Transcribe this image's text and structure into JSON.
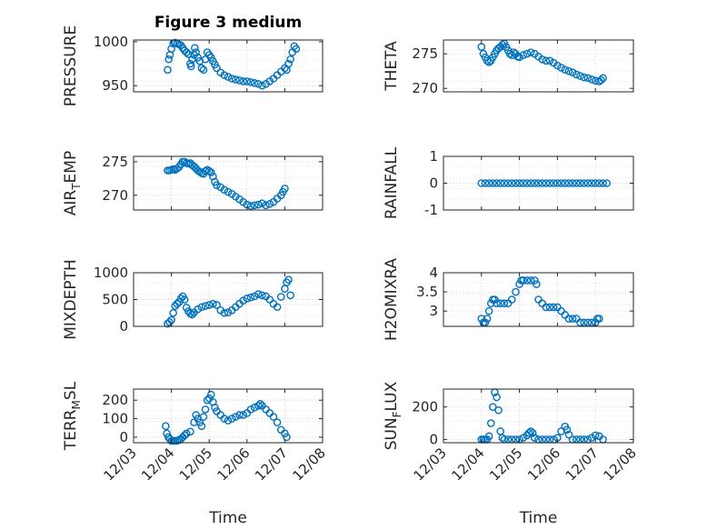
{
  "figure_title": "Figure 3 medium",
  "colors": {
    "marker": "#0072BD",
    "axes": "#262626",
    "grid": "#d0d0d0"
  },
  "chart_data": [
    {
      "type": "scatter",
      "ylabel": "PRESSURE",
      "xlabel": "",
      "ylim": [
        943,
        1002
      ],
      "yticks": [
        950,
        1000
      ],
      "xticks": [],
      "grid": true,
      "points": [
        [
          3.9,
          968
        ],
        [
          3.93,
          980
        ],
        [
          3.96,
          985
        ],
        [
          4.0,
          992
        ],
        [
          4.05,
          998
        ],
        [
          4.1,
          999
        ],
        [
          4.15,
          998
        ],
        [
          4.2,
          997
        ],
        [
          4.25,
          996
        ],
        [
          4.3,
          993
        ],
        [
          4.35,
          990
        ],
        [
          4.4,
          988
        ],
        [
          4.45,
          986
        ],
        [
          4.5,
          975
        ],
        [
          4.52,
          972
        ],
        [
          4.55,
          980
        ],
        [
          4.6,
          985
        ],
        [
          4.62,
          993
        ],
        [
          4.65,
          988
        ],
        [
          4.7,
          982
        ],
        [
          4.75,
          978
        ],
        [
          4.8,
          970
        ],
        [
          4.85,
          968
        ],
        [
          4.9,
          980
        ],
        [
          4.95,
          988
        ],
        [
          5.0,
          985
        ],
        [
          5.05,
          982
        ],
        [
          5.1,
          978
        ],
        [
          5.15,
          974
        ],
        [
          5.2,
          970
        ],
        [
          5.3,
          965
        ],
        [
          5.4,
          962
        ],
        [
          5.5,
          960
        ],
        [
          5.6,
          958
        ],
        [
          5.7,
          957
        ],
        [
          5.8,
          956
        ],
        [
          5.9,
          955
        ],
        [
          6.0,
          955
        ],
        [
          6.1,
          954
        ],
        [
          6.2,
          953
        ],
        [
          6.3,
          952
        ],
        [
          6.4,
          950
        ],
        [
          6.5,
          952
        ],
        [
          6.6,
          955
        ],
        [
          6.7,
          958
        ],
        [
          6.8,
          962
        ],
        [
          6.9,
          966
        ],
        [
          7.0,
          970
        ],
        [
          7.05,
          968
        ],
        [
          7.1,
          975
        ],
        [
          7.15,
          980
        ],
        [
          7.2,
          988
        ],
        [
          7.25,
          995
        ],
        [
          7.3,
          992
        ]
      ]
    },
    {
      "type": "scatter",
      "ylabel": "THETA",
      "xlabel": "",
      "ylim": [
        269.5,
        277
      ],
      "yticks": [
        270,
        275
      ],
      "xticks": [],
      "grid": true,
      "points": [
        [
          4.0,
          276
        ],
        [
          4.05,
          275
        ],
        [
          4.1,
          274.5
        ],
        [
          4.15,
          274
        ],
        [
          4.2,
          273.8
        ],
        [
          4.25,
          274
        ],
        [
          4.3,
          274.5
        ],
        [
          4.35,
          275
        ],
        [
          4.4,
          275.5
        ],
        [
          4.45,
          275.8
        ],
        [
          4.5,
          276
        ],
        [
          4.55,
          276.3
        ],
        [
          4.6,
          276.5
        ],
        [
          4.65,
          276
        ],
        [
          4.7,
          275.5
        ],
        [
          4.75,
          275
        ],
        [
          4.8,
          274.8
        ],
        [
          4.85,
          275.2
        ],
        [
          4.9,
          275
        ],
        [
          4.95,
          274.6
        ],
        [
          5.0,
          274.5
        ],
        [
          5.1,
          274.8
        ],
        [
          5.2,
          275
        ],
        [
          5.3,
          275.2
        ],
        [
          5.4,
          275
        ],
        [
          5.5,
          274.6
        ],
        [
          5.6,
          274.2
        ],
        [
          5.7,
          274
        ],
        [
          5.8,
          274
        ],
        [
          5.9,
          273.7
        ],
        [
          6.0,
          273.3
        ],
        [
          6.1,
          273
        ],
        [
          6.2,
          272.7
        ],
        [
          6.3,
          272.5
        ],
        [
          6.4,
          272.3
        ],
        [
          6.5,
          272
        ],
        [
          6.6,
          271.8
        ],
        [
          6.7,
          271.6
        ],
        [
          6.8,
          271.5
        ],
        [
          6.9,
          271.3
        ],
        [
          7.0,
          271.1
        ],
        [
          7.1,
          271
        ],
        [
          7.15,
          271.2
        ],
        [
          7.2,
          271.5
        ]
      ]
    },
    {
      "type": "scatter",
      "ylabel": "AIR_TEMP",
      "xlabel": "",
      "ylim": [
        267.8,
        275.8
      ],
      "yticks": [
        270,
        275
      ],
      "xticks": [],
      "grid": true,
      "points": [
        [
          3.9,
          273.7
        ],
        [
          3.95,
          273.7
        ],
        [
          4.0,
          273.8
        ],
        [
          4.05,
          273.9
        ],
        [
          4.1,
          273.8
        ],
        [
          4.15,
          274
        ],
        [
          4.2,
          274.2
        ],
        [
          4.25,
          274.6
        ],
        [
          4.3,
          275
        ],
        [
          4.35,
          275
        ],
        [
          4.4,
          274.8
        ],
        [
          4.45,
          274.7
        ],
        [
          4.5,
          274.8
        ],
        [
          4.55,
          274.5
        ],
        [
          4.6,
          274.3
        ],
        [
          4.65,
          274
        ],
        [
          4.7,
          273.7
        ],
        [
          4.75,
          273.5
        ],
        [
          4.8,
          273.3
        ],
        [
          4.85,
          273.2
        ],
        [
          4.9,
          273.6
        ],
        [
          4.95,
          273.8
        ],
        [
          5.0,
          273.6
        ],
        [
          5.05,
          273.4
        ],
        [
          5.1,
          272.8
        ],
        [
          5.15,
          272
        ],
        [
          5.2,
          271.5
        ],
        [
          5.3,
          271.2
        ],
        [
          5.4,
          270.8
        ],
        [
          5.5,
          270.5
        ],
        [
          5.6,
          270.2
        ],
        [
          5.7,
          269.8
        ],
        [
          5.8,
          269.4
        ],
        [
          5.9,
          269
        ],
        [
          6.0,
          268.6
        ],
        [
          6.1,
          268.4
        ],
        [
          6.2,
          268.5
        ],
        [
          6.3,
          268.6
        ],
        [
          6.4,
          268.8
        ],
        [
          6.5,
          268.5
        ],
        [
          6.6,
          268.7
        ],
        [
          6.7,
          269
        ],
        [
          6.8,
          269.5
        ],
        [
          6.9,
          270
        ],
        [
          6.95,
          270.5
        ],
        [
          7.0,
          271
        ]
      ]
    },
    {
      "type": "scatter",
      "ylabel": "RAINFALL",
      "xlabel": "",
      "ylim": [
        -1,
        1
      ],
      "yticks": [
        -1,
        0,
        1
      ],
      "xticks": [],
      "grid": true,
      "points": [
        [
          4.0,
          0
        ],
        [
          4.1,
          0
        ],
        [
          4.2,
          0
        ],
        [
          4.3,
          0
        ],
        [
          4.4,
          0
        ],
        [
          4.5,
          0
        ],
        [
          4.6,
          0
        ],
        [
          4.7,
          0
        ],
        [
          4.8,
          0
        ],
        [
          4.9,
          0
        ],
        [
          5.0,
          0
        ],
        [
          5.1,
          0
        ],
        [
          5.2,
          0
        ],
        [
          5.3,
          0
        ],
        [
          5.4,
          0
        ],
        [
          5.5,
          0
        ],
        [
          5.6,
          0
        ],
        [
          5.7,
          0
        ],
        [
          5.8,
          0
        ],
        [
          5.9,
          0
        ],
        [
          6.0,
          0
        ],
        [
          6.1,
          0
        ],
        [
          6.2,
          0
        ],
        [
          6.3,
          0
        ],
        [
          6.4,
          0
        ],
        [
          6.5,
          0
        ],
        [
          6.6,
          0
        ],
        [
          6.7,
          0
        ],
        [
          6.8,
          0
        ],
        [
          6.9,
          0
        ],
        [
          7.0,
          0
        ],
        [
          7.1,
          0
        ],
        [
          7.2,
          0
        ],
        [
          7.3,
          0
        ]
      ]
    },
    {
      "type": "scatter",
      "ylabel": "MIXDEPTH",
      "xlabel": "",
      "ylim": [
        0,
        1000
      ],
      "yticks": [
        0,
        500,
        1000
      ],
      "xticks": [],
      "grid": true,
      "points": [
        [
          3.9,
          50
        ],
        [
          3.95,
          80
        ],
        [
          4.0,
          120
        ],
        [
          4.05,
          250
        ],
        [
          4.1,
          380
        ],
        [
          4.15,
          420
        ],
        [
          4.2,
          450
        ],
        [
          4.25,
          520
        ],
        [
          4.3,
          560
        ],
        [
          4.35,
          500
        ],
        [
          4.4,
          350
        ],
        [
          4.45,
          280
        ],
        [
          4.5,
          240
        ],
        [
          4.55,
          220
        ],
        [
          4.6,
          260
        ],
        [
          4.7,
          320
        ],
        [
          4.8,
          360
        ],
        [
          4.9,
          380
        ],
        [
          5.0,
          400
        ],
        [
          5.1,
          420
        ],
        [
          5.2,
          400
        ],
        [
          5.3,
          300
        ],
        [
          5.4,
          250
        ],
        [
          5.5,
          260
        ],
        [
          5.6,
          300
        ],
        [
          5.7,
          360
        ],
        [
          5.8,
          420
        ],
        [
          5.9,
          480
        ],
        [
          6.0,
          520
        ],
        [
          6.1,
          540
        ],
        [
          6.2,
          560
        ],
        [
          6.3,
          600
        ],
        [
          6.4,
          580
        ],
        [
          6.5,
          560
        ],
        [
          6.6,
          500
        ],
        [
          6.7,
          420
        ],
        [
          6.8,
          360
        ],
        [
          6.9,
          550
        ],
        [
          7.0,
          700
        ],
        [
          7.05,
          820
        ],
        [
          7.1,
          870
        ],
        [
          7.15,
          580
        ]
      ]
    },
    {
      "type": "scatter",
      "ylabel": "H2OMIXRA",
      "xlabel": "",
      "ylim": [
        2.6,
        4
      ],
      "yticks": [
        3,
        3.5,
        4
      ],
      "xticks": [],
      "grid": true,
      "points": [
        [
          4.0,
          2.8
        ],
        [
          4.05,
          2.7
        ],
        [
          4.1,
          2.7
        ],
        [
          4.15,
          2.8
        ],
        [
          4.2,
          3.0
        ],
        [
          4.25,
          3.2
        ],
        [
          4.3,
          3.3
        ],
        [
          4.35,
          3.3
        ],
        [
          4.4,
          3.2
        ],
        [
          4.5,
          3.2
        ],
        [
          4.6,
          3.2
        ],
        [
          4.7,
          3.2
        ],
        [
          4.8,
          3.3
        ],
        [
          4.9,
          3.5
        ],
        [
          5.0,
          3.7
        ],
        [
          5.05,
          3.8
        ],
        [
          5.1,
          3.8
        ],
        [
          5.2,
          3.8
        ],
        [
          5.3,
          3.8
        ],
        [
          5.4,
          3.8
        ],
        [
          5.45,
          3.7
        ],
        [
          5.5,
          3.3
        ],
        [
          5.6,
          3.2
        ],
        [
          5.7,
          3.1
        ],
        [
          5.8,
          3.1
        ],
        [
          5.9,
          3.1
        ],
        [
          6.0,
          3.1
        ],
        [
          6.1,
          3.0
        ],
        [
          6.2,
          2.9
        ],
        [
          6.3,
          2.8
        ],
        [
          6.4,
          2.8
        ],
        [
          6.5,
          2.8
        ],
        [
          6.6,
          2.7
        ],
        [
          6.7,
          2.7
        ],
        [
          6.8,
          2.7
        ],
        [
          6.9,
          2.7
        ],
        [
          7.0,
          2.7
        ],
        [
          7.05,
          2.8
        ],
        [
          7.1,
          2.8
        ]
      ]
    },
    {
      "type": "scatter",
      "ylabel": "TERR_MSL",
      "xlabel": "Time",
      "ylim": [
        -30,
        260
      ],
      "yticks": [
        0,
        100,
        200
      ],
      "xticks": [
        "12/03",
        "12/04",
        "12/05",
        "12/06",
        "12/07",
        "12/08"
      ],
      "grid": true,
      "points": [
        [
          3.85,
          60
        ],
        [
          3.88,
          20
        ],
        [
          3.92,
          0
        ],
        [
          3.96,
          -10
        ],
        [
          4.0,
          -20
        ],
        [
          4.05,
          -20
        ],
        [
          4.1,
          -20
        ],
        [
          4.15,
          -20
        ],
        [
          4.2,
          -15
        ],
        [
          4.25,
          -10
        ],
        [
          4.3,
          0
        ],
        [
          4.35,
          10
        ],
        [
          4.4,
          20
        ],
        [
          4.5,
          30
        ],
        [
          4.6,
          80
        ],
        [
          4.65,
          120
        ],
        [
          4.7,
          100
        ],
        [
          4.75,
          80
        ],
        [
          4.8,
          60
        ],
        [
          4.85,
          110
        ],
        [
          4.9,
          150
        ],
        [
          4.95,
          200
        ],
        [
          5.0,
          210
        ],
        [
          5.05,
          230
        ],
        [
          5.1,
          190
        ],
        [
          5.15,
          160
        ],
        [
          5.2,
          140
        ],
        [
          5.3,
          120
        ],
        [
          5.4,
          100
        ],
        [
          5.5,
          90
        ],
        [
          5.6,
          100
        ],
        [
          5.7,
          110
        ],
        [
          5.8,
          120
        ],
        [
          5.9,
          120
        ],
        [
          6.0,
          130
        ],
        [
          6.1,
          150
        ],
        [
          6.2,
          160
        ],
        [
          6.3,
          170
        ],
        [
          6.35,
          180
        ],
        [
          6.4,
          170
        ],
        [
          6.5,
          150
        ],
        [
          6.6,
          130
        ],
        [
          6.7,
          110
        ],
        [
          6.8,
          80
        ],
        [
          6.9,
          40
        ],
        [
          7.0,
          20
        ],
        [
          7.05,
          0
        ]
      ]
    },
    {
      "type": "scatter",
      "ylabel": "SUN_FLUX",
      "xlabel": "Time",
      "ylim": [
        -20,
        310
      ],
      "yticks": [
        0,
        200
      ],
      "xticks": [
        "12/03",
        "12/04",
        "12/05",
        "12/06",
        "12/07",
        "12/08"
      ],
      "grid": true,
      "points": [
        [
          4.0,
          0
        ],
        [
          4.05,
          0
        ],
        [
          4.1,
          0
        ],
        [
          4.15,
          0
        ],
        [
          4.2,
          20
        ],
        [
          4.25,
          100
        ],
        [
          4.3,
          200
        ],
        [
          4.35,
          290
        ],
        [
          4.4,
          260
        ],
        [
          4.45,
          180
        ],
        [
          4.5,
          50
        ],
        [
          4.55,
          10
        ],
        [
          4.6,
          0
        ],
        [
          4.7,
          0
        ],
        [
          4.8,
          0
        ],
        [
          4.9,
          0
        ],
        [
          5.0,
          0
        ],
        [
          5.1,
          10
        ],
        [
          5.2,
          25
        ],
        [
          5.25,
          40
        ],
        [
          5.3,
          50
        ],
        [
          5.35,
          40
        ],
        [
          5.4,
          10
        ],
        [
          5.5,
          0
        ],
        [
          5.6,
          0
        ],
        [
          5.7,
          0
        ],
        [
          5.8,
          0
        ],
        [
          5.9,
          0
        ],
        [
          6.0,
          10
        ],
        [
          6.1,
          50
        ],
        [
          6.2,
          80
        ],
        [
          6.25,
          60
        ],
        [
          6.3,
          30
        ],
        [
          6.4,
          0
        ],
        [
          6.5,
          0
        ],
        [
          6.6,
          0
        ],
        [
          6.7,
          0
        ],
        [
          6.8,
          0
        ],
        [
          6.9,
          10
        ],
        [
          7.0,
          25
        ],
        [
          7.1,
          20
        ],
        [
          7.2,
          0
        ]
      ]
    }
  ]
}
